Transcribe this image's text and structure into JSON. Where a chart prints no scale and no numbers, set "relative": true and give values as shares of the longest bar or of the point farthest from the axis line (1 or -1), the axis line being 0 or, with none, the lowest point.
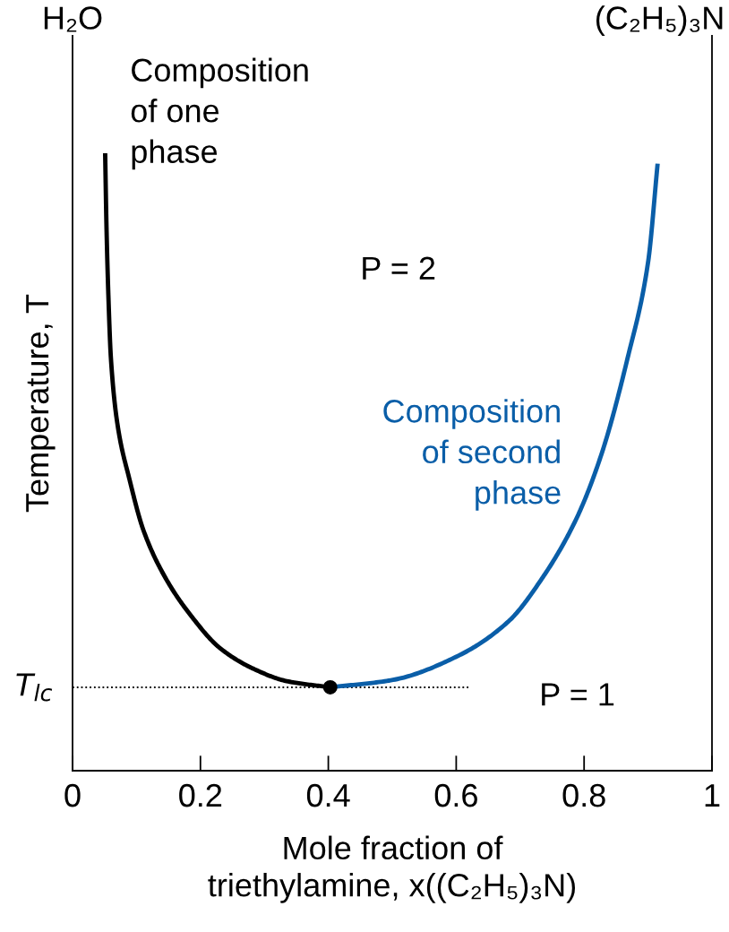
{
  "chart_data": {
    "type": "line",
    "relative": true,
    "xlabel": "Mole fraction of\ntriethylamine, x((C₂H₅)₃N)",
    "ylabel": "Temperature, T",
    "xlim": [
      0,
      1
    ],
    "xticks": [
      0,
      0.2,
      0.4,
      0.6,
      0.8,
      1
    ],
    "series": [
      {
        "color": "#000000",
        "x": [
          0.051,
          0.053,
          0.056,
          0.06,
          0.071,
          0.089,
          0.111,
          0.146,
          0.186,
          0.23,
          0.283,
          0.335,
          0.403
        ],
        "values": [
          1.0,
          0.885,
          0.771,
          0.668,
          0.556,
          0.472,
          0.389,
          0.311,
          0.25,
          0.199,
          0.165,
          0.145,
          0.135
        ]
      },
      {
        "color": "#0a5ea8",
        "x": [
          0.403,
          0.501,
          0.603,
          0.682,
          0.734,
          0.787,
          0.827,
          0.868,
          0.9,
          0.915
        ],
        "values": [
          0.135,
          0.147,
          0.186,
          0.242,
          0.311,
          0.406,
          0.512,
          0.668,
          0.823,
          0.983
        ]
      },
      {
        "type": "scatter",
        "color": "#000000",
        "marker": "circle",
        "x": [
          0.403
        ],
        "values": [
          0.135
        ]
      }
    ],
    "ref_lines": [
      {
        "axis": "y",
        "value": 0.135,
        "label": "T$_{lc}$",
        "line_style": "dotted",
        "color": "#000000"
      }
    ],
    "annotations": [
      "H₂O",
      "(C₂H₅)₃N",
      "Composition\nof one\nphase",
      "P = 2",
      "Composition\nof second\nphase",
      "P = 1"
    ],
    "grid": false,
    "legend": false
  }
}
